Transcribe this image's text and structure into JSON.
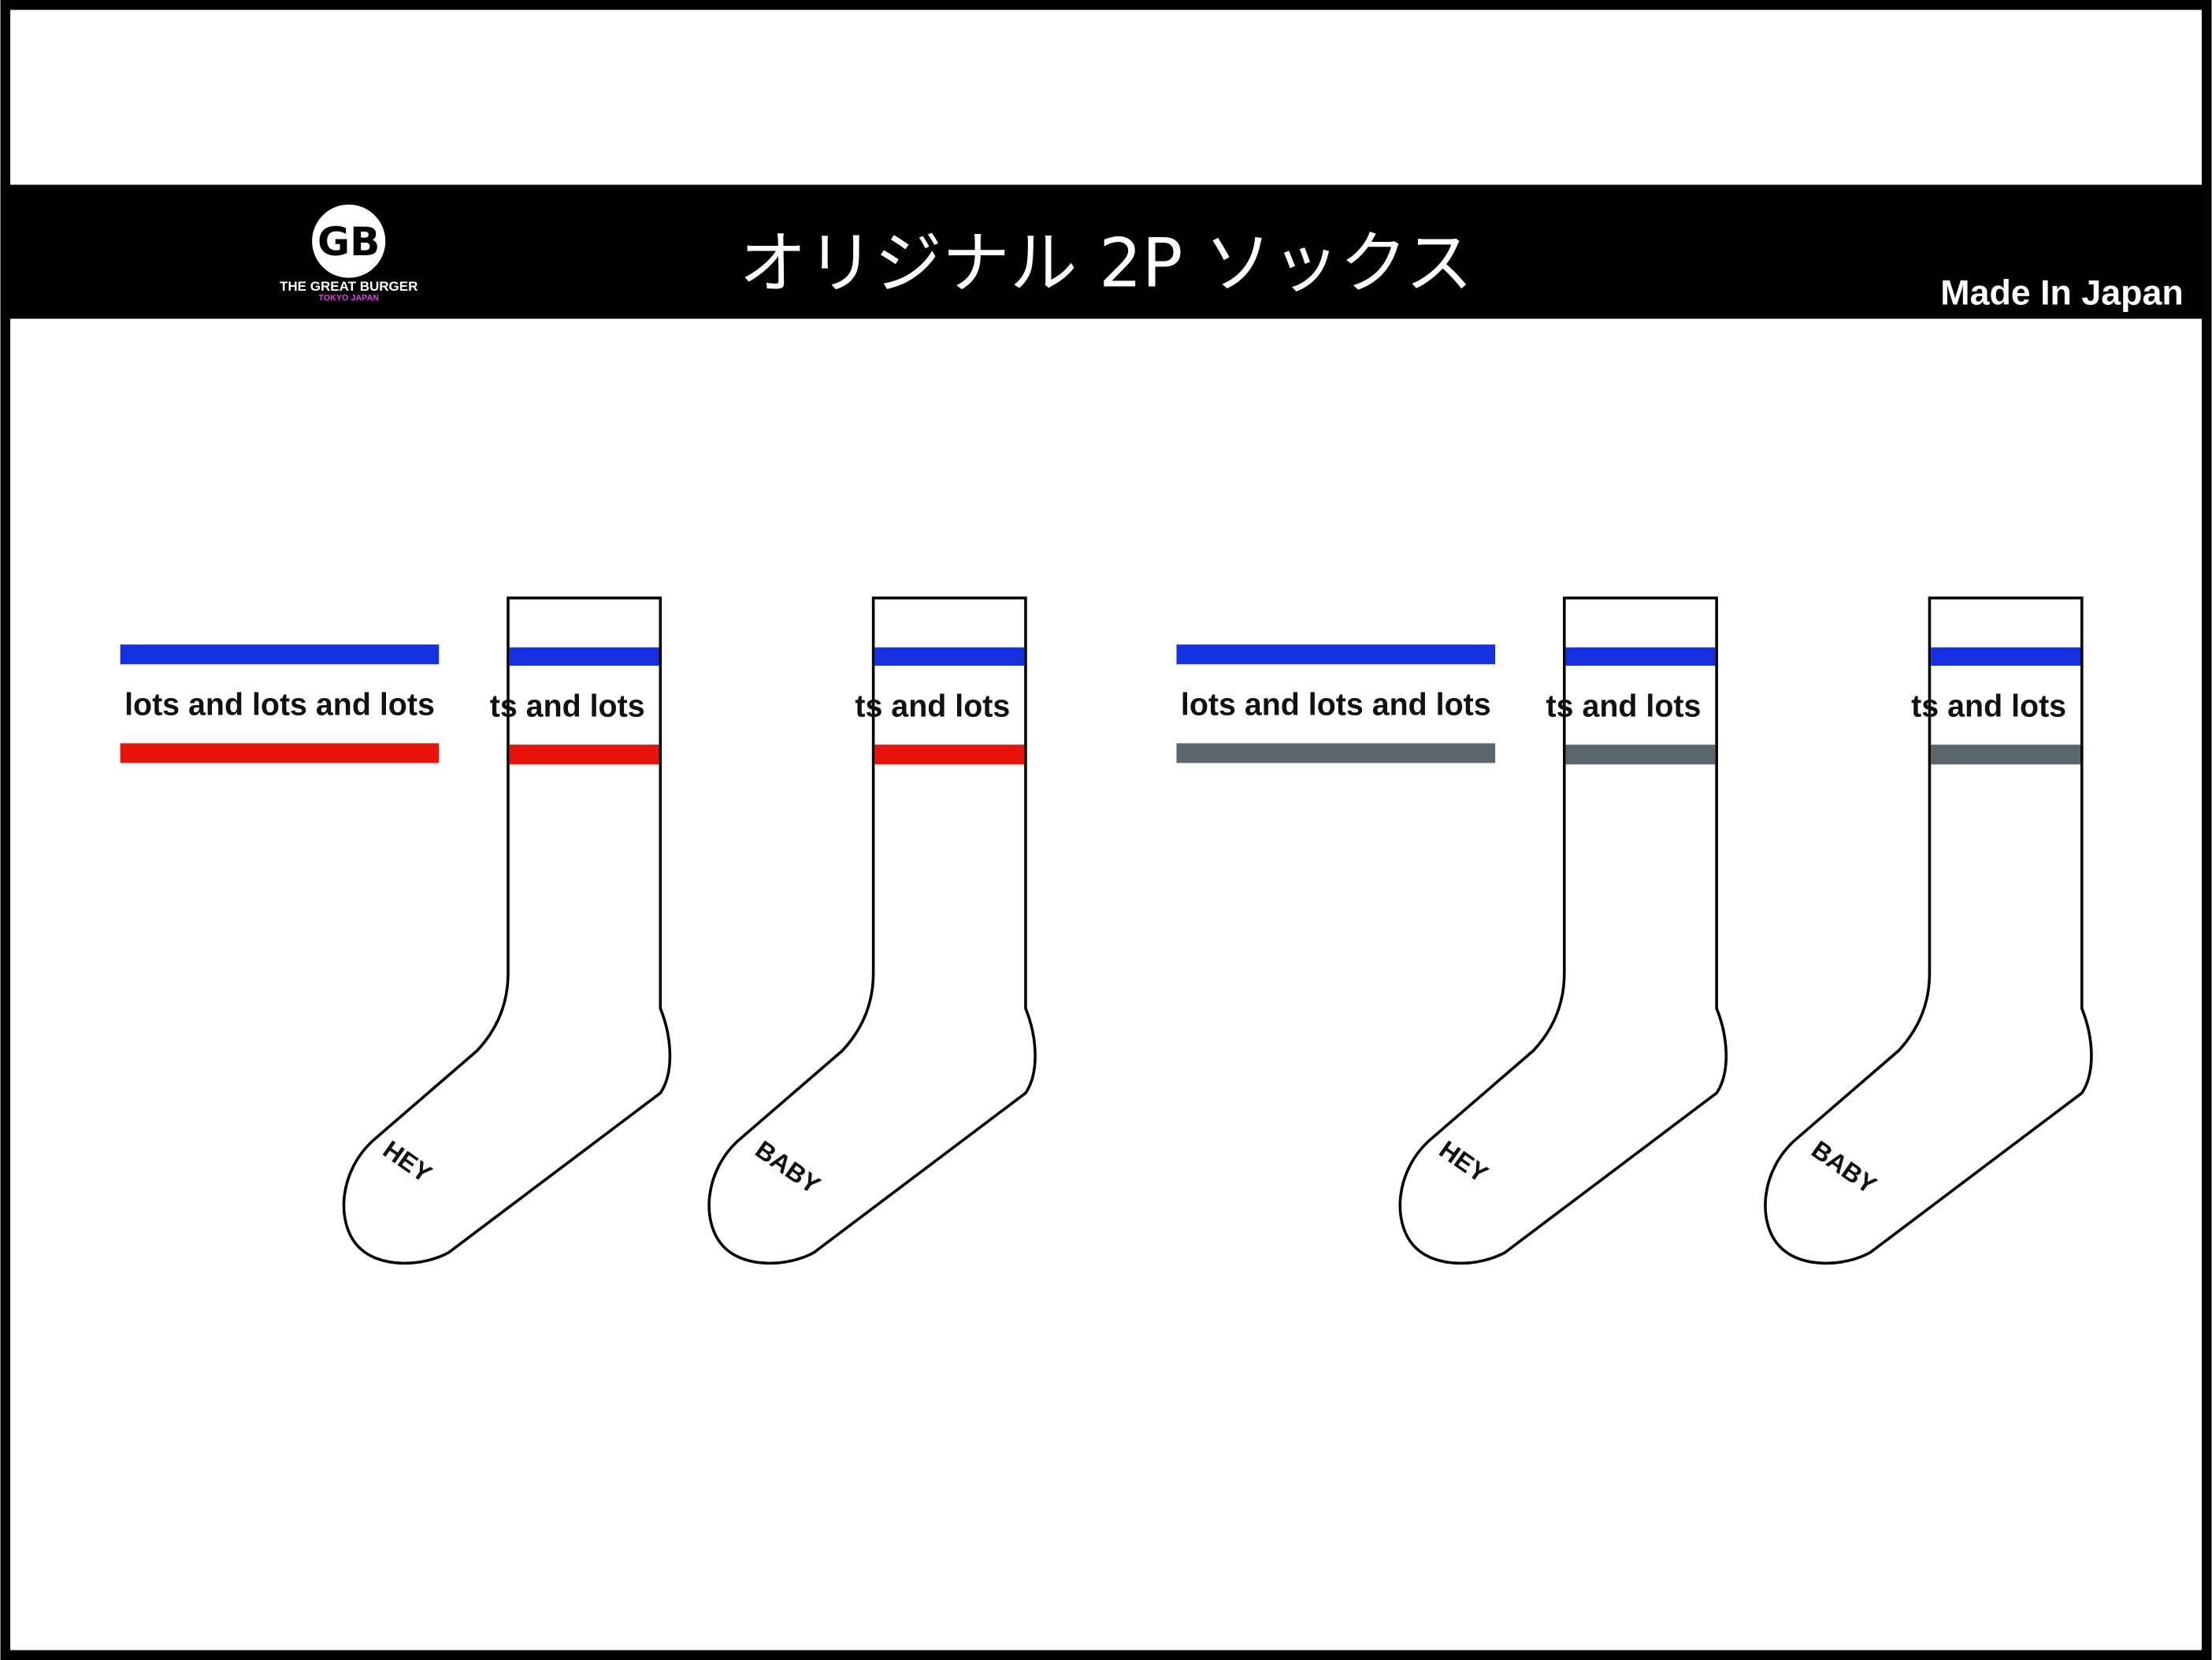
{
  "header": {
    "title": "オリジナル 2P ソックス",
    "made_in": "Made In Japan",
    "logo": {
      "initials": "GB",
      "name": "THE GREAT BURGER",
      "sub": "TOKYO JAPAN"
    }
  },
  "colors": {
    "blue": "#1530e0",
    "red": "#e8140c",
    "gray": "#5a666b",
    "logo_pink": "#e23be6"
  },
  "band_text": "lots and lots and lots",
  "sets": [
    {
      "accent": "red",
      "socks": [
        {
          "sole_text": "HEY"
        },
        {
          "sole_text": "BABY"
        }
      ]
    },
    {
      "accent": "gray",
      "socks": [
        {
          "sole_text": "HEY"
        },
        {
          "sole_text": "BABY"
        }
      ]
    }
  ]
}
